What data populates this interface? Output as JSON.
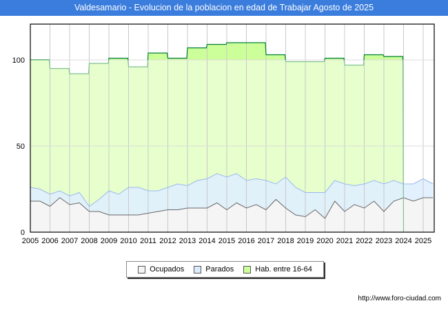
{
  "title": "Valdesamario - Evolucion de la poblacion en edad de Trabajar Agosto de 2025",
  "url": "http://www.foro-ciudad.com",
  "watermark": "FORO-CIUDAD.COM",
  "colors": {
    "hab_fill_high": "#ccff99",
    "hab_fill_low": "#e6ffcc",
    "hab_line": "#008033",
    "hab_line_low": "#80c090",
    "parados_fill": "#e0f0ff",
    "parados_line": "#99b8ee",
    "ocupados_fill": "#f5f5f5",
    "ocupados_line": "#666666",
    "title_bg": "#3b7ddd"
  },
  "chart_data": {
    "type": "area",
    "title": "Valdesamario - Evolucion de la poblacion en edad de Trabajar Agosto de 2025",
    "xlabel": "",
    "ylabel": "",
    "xlim": [
      2005,
      2025.6
    ],
    "ylim": [
      0,
      122
    ],
    "y_ticks": [
      0,
      50,
      100
    ],
    "x_ticks": [
      "2005",
      "2006",
      "2007",
      "2008",
      "2009",
      "2010",
      "2011",
      "2012",
      "2013",
      "2014",
      "2015",
      "2016",
      "2017",
      "2018",
      "2019",
      "2020",
      "2021",
      "2022",
      "2023",
      "2024",
      "2025"
    ],
    "grid": true,
    "legend": [
      "Ocupados",
      "Parados",
      "Hab. entre 16-64"
    ],
    "legend_position": "bottom",
    "hab": {
      "name": "Hab. entre 16-64",
      "years": [
        2005,
        2006,
        2007,
        2008,
        2009,
        2010,
        2011,
        2012,
        2013,
        2014,
        2015,
        2016,
        2017,
        2018,
        2019,
        2020,
        2021,
        2022,
        2023
      ],
      "values": [
        100,
        95,
        92,
        98,
        101,
        96,
        104,
        101,
        107,
        109,
        110,
        110,
        103,
        99,
        99,
        101,
        97,
        103,
        102
      ]
    },
    "x_semiannual": [
      2005,
      2005.5,
      2006,
      2006.5,
      2007,
      2007.5,
      2008,
      2008.5,
      2009,
      2009.5,
      2010,
      2010.5,
      2011,
      2011.5,
      2012,
      2012.5,
      2013,
      2013.5,
      2014,
      2014.5,
      2015,
      2015.5,
      2016,
      2016.5,
      2017,
      2017.5,
      2018,
      2018.5,
      2019,
      2019.5,
      2020,
      2020.5,
      2021,
      2021.5,
      2022,
      2022.5,
      2023,
      2023.5,
      2024,
      2024.5,
      2025,
      2025.5
    ],
    "series": [
      {
        "name": "Ocupados",
        "values": [
          18,
          18,
          15,
          20,
          16,
          17,
          12,
          12,
          10,
          10,
          10,
          10,
          11,
          12,
          13,
          13,
          14,
          14,
          14,
          17,
          13,
          17,
          14,
          16,
          13,
          19,
          14,
          10,
          9,
          13,
          8,
          18,
          12,
          16,
          14,
          18,
          12,
          18,
          20,
          18,
          20,
          20
        ]
      },
      {
        "name": "Parados",
        "values": [
          8,
          7,
          7,
          4,
          5,
          6,
          3,
          7,
          14,
          12,
          16,
          16,
          13,
          12,
          13,
          15,
          13,
          16,
          17,
          17,
          19,
          17,
          16,
          15,
          17,
          9,
          18,
          16,
          14,
          10,
          15,
          12,
          16,
          11,
          14,
          12,
          16,
          12,
          8,
          10,
          11,
          8
        ]
      }
    ]
  }
}
